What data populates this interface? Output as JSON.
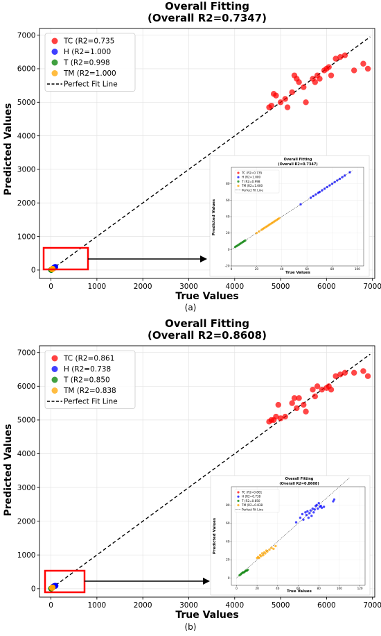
{
  "figure": {
    "panels": [
      {
        "caption": "(a)",
        "title_line1": "Overall Fitting",
        "title_line2": "(Overall R2=0.7347)",
        "xlabel": "True Values",
        "ylabel": "Predicted Values",
        "inset": {
          "title_line1": "Overall Fitting",
          "title_line2": "(Overall R2=0.7347)",
          "xlabel": "True Values",
          "ylabel": "Predicted Values"
        }
      },
      {
        "caption": "(b)",
        "title_line1": "Overall Fitting",
        "title_line2": "(Overall R2=0.8608)",
        "xlabel": "True Values",
        "ylabel": "Predicted Values",
        "inset": {
          "title_line1": "Overall Fitting",
          "title_line2": "(Overall R2=0.8608)",
          "xlabel": "True Values",
          "ylabel": "Predicted Values"
        }
      }
    ]
  },
  "chart_data": [
    {
      "type": "scatter",
      "title": "Overall Fitting (Overall R2=0.7347)",
      "xlabel": "True Values",
      "ylabel": "Predicted Values",
      "xlim": [
        -250,
        7050
      ],
      "ylim": [
        -250,
        7200
      ],
      "xticks": [
        0,
        1000,
        2000,
        3000,
        4000,
        5000,
        6000,
        7000
      ],
      "yticks": [
        0,
        1000,
        2000,
        3000,
        4000,
        5000,
        6000,
        7000
      ],
      "grid": true,
      "legend_position": "top-left",
      "series": [
        {
          "name": "TC (R2=0.735",
          "color": "#ff0000",
          "x": [
            4750,
            4800,
            4850,
            4900,
            5000,
            5100,
            5150,
            5250,
            5300,
            5350,
            5400,
            5500,
            5550,
            5700,
            5750,
            5800,
            5850,
            5950,
            6000,
            6050,
            6100,
            6200,
            6300,
            6400,
            6600,
            6800,
            6900
          ],
          "y": [
            4850,
            4900,
            5250,
            5200,
            5000,
            5100,
            4850,
            5300,
            5800,
            5700,
            5600,
            5450,
            5000,
            5700,
            5600,
            5800,
            5700,
            5950,
            6000,
            6050,
            5800,
            6300,
            6350,
            6400,
            5950,
            6150,
            6000
          ]
        },
        {
          "name": "H (R2=1.000",
          "color": "#0000ff",
          "x": [
            45,
            55,
            60,
            65,
            70,
            75,
            80,
            85,
            90,
            95
          ],
          "y": [
            45,
            55,
            60,
            65,
            70,
            75,
            80,
            85,
            90,
            95
          ]
        },
        {
          "name": "T (R2=0.998",
          "color": "#008000",
          "x": [
            3,
            5,
            6,
            7,
            8,
            9,
            10
          ],
          "y": [
            3,
            5,
            6,
            7,
            8,
            9,
            10
          ]
        },
        {
          "name": "TM (R2=1.000",
          "color": "#ffa500",
          "x": [
            20,
            23,
            25,
            28,
            30,
            33,
            35,
            38
          ],
          "y": [
            20,
            23,
            25,
            28,
            30,
            33,
            35,
            38
          ]
        }
      ],
      "reference_line": {
        "name": "Perfect Fit Line",
        "x": [
          0,
          6950
        ],
        "y": [
          0,
          6950
        ]
      }
    },
    {
      "type": "scatter",
      "title": "Overall Fitting (Overall R2=0.7347)",
      "xlabel": "True Values",
      "ylabel": "Predicted Values",
      "xlim": [
        0,
        105
      ],
      "ylim": [
        -20,
        100
      ],
      "xticks": [
        0,
        20,
        40,
        60,
        80,
        100
      ],
      "yticks": [
        -20,
        0,
        20,
        40,
        60,
        80
      ],
      "grid": true,
      "legend_position": "top-left",
      "series": [
        {
          "name": "TC (R2=0.735",
          "color": "#ff0000",
          "x": [],
          "y": []
        },
        {
          "name": "H (R2=1.000",
          "color": "#0000ff",
          "x": [
            55,
            63,
            65,
            67,
            69,
            70,
            72,
            74,
            76,
            78,
            80,
            82,
            84,
            86,
            88,
            90,
            94
          ],
          "y": [
            55,
            63,
            65,
            67,
            69,
            70,
            72,
            74,
            76,
            78,
            80,
            82,
            84,
            86,
            88,
            90,
            94
          ]
        },
        {
          "name": "T (R2=0.998",
          "color": "#008000",
          "x": [
            3,
            4,
            5,
            6,
            7,
            8,
            9,
            10,
            11
          ],
          "y": [
            3,
            4,
            5,
            6,
            7,
            8,
            9,
            10,
            11
          ]
        },
        {
          "name": "TM (R2=1.000",
          "color": "#ffa500",
          "x": [
            20,
            22,
            24,
            25,
            26,
            27,
            28,
            29,
            30,
            31,
            32,
            33,
            34,
            35,
            36,
            37,
            38
          ],
          "y": [
            20,
            22,
            24,
            25,
            26,
            27,
            28,
            29,
            30,
            31,
            32,
            33,
            34,
            35,
            36,
            37,
            38
          ]
        }
      ],
      "reference_line": {
        "name": "Perfect Fit Line",
        "x": [
          0,
          96
        ],
        "y": [
          0,
          96
        ]
      }
    },
    {
      "type": "scatter",
      "title": "Overall Fitting (Overall R2=0.8608)",
      "xlabel": "True Values",
      "ylabel": "Predicted Values",
      "xlim": [
        -250,
        7050
      ],
      "ylim": [
        -250,
        7200
      ],
      "xticks": [
        0,
        1000,
        2000,
        3000,
        4000,
        5000,
        6000,
        7000
      ],
      "yticks": [
        0,
        1000,
        2000,
        3000,
        4000,
        5000,
        6000,
        7000
      ],
      "grid": true,
      "legend_position": "top-left",
      "series": [
        {
          "name": "TC (R2=0.861",
          "color": "#ff0000",
          "x": [
            4750,
            4800,
            4850,
            4900,
            4950,
            5000,
            5100,
            5250,
            5300,
            5350,
            5400,
            5500,
            5550,
            5700,
            5750,
            5800,
            5900,
            6000,
            6050,
            6100,
            6200,
            6300,
            6400,
            6600,
            6800,
            6900
          ],
          "y": [
            4950,
            5000,
            5000,
            5100,
            5450,
            5050,
            5100,
            5500,
            5650,
            5350,
            5650,
            5450,
            5250,
            5900,
            5700,
            6000,
            5900,
            5950,
            6000,
            5900,
            6300,
            6350,
            6400,
            6400,
            6450,
            6300
          ]
        },
        {
          "name": "H (R2=0.738",
          "color": "#0000ff",
          "x": [
            45,
            55,
            60,
            65,
            70,
            75,
            80,
            85,
            90,
            95,
            100
          ],
          "y": [
            60,
            65,
            70,
            72,
            75,
            78,
            80,
            82,
            84,
            84,
            86
          ]
        },
        {
          "name": "T (R2=0.850",
          "color": "#008000",
          "x": [
            3,
            5,
            6,
            7,
            8,
            9,
            10
          ],
          "y": [
            4,
            5,
            6,
            7,
            8,
            8,
            9
          ]
        },
        {
          "name": "TM (R2=0.838",
          "color": "#ffa500",
          "x": [
            20,
            23,
            25,
            28,
            30,
            33,
            35,
            38
          ],
          "y": [
            22,
            24,
            27,
            28,
            30,
            32,
            33,
            35
          ]
        }
      ],
      "reference_line": {
        "name": "Perfect Fit Line",
        "x": [
          0,
          6950
        ],
        "y": [
          0,
          6950
        ]
      }
    },
    {
      "type": "scatter",
      "title": "Overall Fitting (Overall R2=0.8608)",
      "xlabel": "True Values",
      "ylabel": "Predicted Values",
      "xlim": [
        -5,
        125
      ],
      "ylim": [
        -8,
        100
      ],
      "xticks": [
        0,
        20,
        40,
        60,
        80,
        100,
        120
      ],
      "yticks": [
        0,
        20,
        40,
        60,
        80
      ],
      "grid": true,
      "legend_position": "top-left",
      "series": [
        {
          "name": "TC (R2=0.861",
          "color": "#ff0000",
          "x": [],
          "y": []
        },
        {
          "name": "H (R2=0.738",
          "color": "#0000ff",
          "x": [
            58,
            62,
            64,
            65,
            67,
            68,
            69,
            70,
            71,
            72,
            73,
            74,
            75,
            76,
            77,
            78,
            79,
            80,
            81,
            82,
            83,
            85,
            94,
            95
          ],
          "y": [
            61,
            66,
            70,
            64,
            72,
            69,
            73,
            66,
            71,
            74,
            68,
            76,
            72,
            75,
            79,
            80,
            76,
            82,
            78,
            79,
            77,
            78,
            84,
            86
          ]
        },
        {
          "name": "T (R2=0.850",
          "color": "#008000",
          "x": [
            3,
            4,
            5,
            6,
            7,
            8,
            9,
            10,
            11
          ],
          "y": [
            3,
            4,
            5,
            6,
            6,
            7,
            8,
            8,
            9
          ]
        },
        {
          "name": "TM (R2=0.838",
          "color": "#ffa500",
          "x": [
            20,
            21,
            22,
            23,
            24,
            25,
            26,
            27,
            28,
            29,
            30,
            32,
            34,
            36,
            38
          ],
          "y": [
            22,
            23,
            22,
            25,
            24,
            27,
            25,
            28,
            27,
            30,
            29,
            31,
            33,
            32,
            35
          ]
        }
      ],
      "reference_line": {
        "name": "Perfect Fit Line",
        "x": [
          0,
          110
        ],
        "y": [
          0,
          110
        ]
      }
    }
  ]
}
